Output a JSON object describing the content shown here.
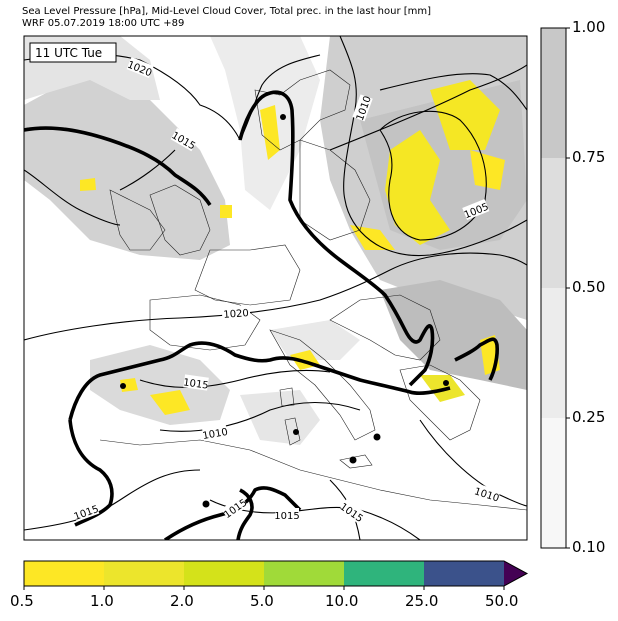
{
  "header": {
    "line1": "Sea Level Pressure [hPa], Mid-Level Cloud Cover, Total prec. in the last hour [mm]",
    "line2": "WRF 05.07.2019 18:00 UTC +89"
  },
  "time_box": "11 UTC Tue",
  "isobar_labels": [
    "1020",
    "1015",
    "1010",
    "1005",
    "1020",
    "1015",
    "1010",
    "1010",
    "1015",
    "1015",
    "1015",
    "1015"
  ],
  "colors": {
    "precip": [
      "#fde725",
      "#ece52c",
      "#d4e21a",
      "#a0da39",
      "#2fb47c",
      "#3b528b",
      "#440154"
    ],
    "cloud": [
      "#f7f7f7",
      "#ececec",
      "#dddddd",
      "#c8c8c8"
    ]
  },
  "cloud_colorbar": {
    "ticks": [
      "1.00",
      "0.75",
      "0.50",
      "0.25",
      "0.10"
    ]
  },
  "precip_colorbar": {
    "ticks": [
      "0.5",
      "1.0",
      "2.0",
      "5.0",
      "10.0",
      "25.0",
      "50.0"
    ]
  }
}
